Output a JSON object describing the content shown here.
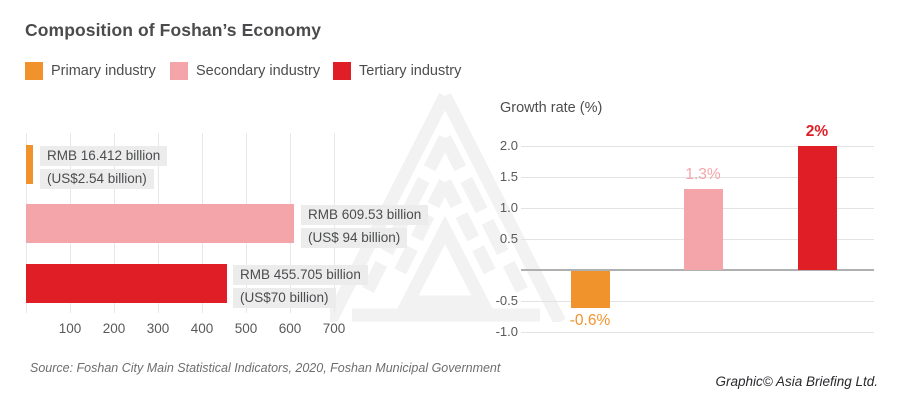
{
  "title": "Composition of Foshan’s Economy",
  "legend": [
    {
      "label": "Primary industry",
      "color": "#F0932D"
    },
    {
      "label": "Secondary industry",
      "color": "#F4A5AA"
    },
    {
      "label": "Tertiary industry",
      "color": "#E01E25"
    }
  ],
  "colors": {
    "primary": "#F0932D",
    "secondary": "#F4A5AA",
    "tertiary": "#E01E25",
    "label_background": "#ECECEC",
    "watermark": "#F2F2F2"
  },
  "chart_data": [
    {
      "type": "bar",
      "orientation": "horizontal",
      "title": "",
      "categories": [
        "Primary industry",
        "Secondary industry",
        "Tertiary industry"
      ],
      "values": [
        16.412,
        609.53,
        455.705
      ],
      "unit": "RMB billion",
      "xlim": [
        0,
        750
      ],
      "x_ticks": [
        100,
        200,
        300,
        400,
        500,
        600,
        700
      ],
      "grid": true,
      "bar_labels": [
        {
          "line1": "RMB 16.412 billion",
          "line2": "(US$2.54 billion)"
        },
        {
          "line1": "RMB 609.53 billion",
          "line2": "(US$ 94 billion)"
        },
        {
          "line1": "RMB 455.705 billion",
          "line2": "(US$70 billion)"
        }
      ]
    },
    {
      "type": "bar",
      "orientation": "vertical",
      "title": "Growth rate (%)",
      "categories": [
        "Primary industry",
        "Secondary industry",
        "Tertiary industry"
      ],
      "values": [
        -0.6,
        1.3,
        2.0
      ],
      "value_labels": [
        "-0.6%",
        "1.3%",
        "2%"
      ],
      "ylim": [
        -1.0,
        2.0
      ],
      "y_tick_labels": [
        "2.0",
        "1.5",
        "1.0",
        "0.5",
        "-0.5",
        "-1.0"
      ],
      "y_tick_values": [
        2.0,
        1.5,
        1.0,
        0.5,
        -0.5,
        -1.0
      ],
      "grid": true
    }
  ],
  "source": "Source: Foshan City Main Statistical Indicators, 2020, Foshan Municipal Government",
  "credit": "Graphic© Asia Briefing Ltd."
}
